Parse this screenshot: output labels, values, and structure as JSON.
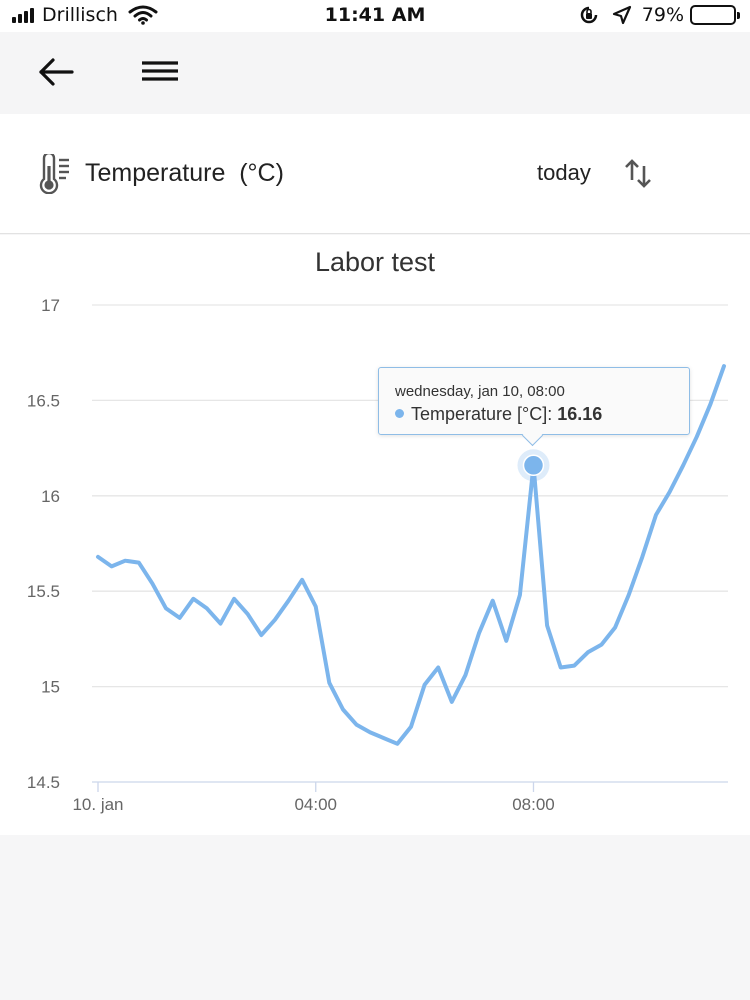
{
  "status_bar": {
    "carrier": "Drillisch",
    "time": "11:41 AM",
    "battery": "79%",
    "battery_level": 0.79
  },
  "nav": {
    "back_icon": "arrow-left-icon",
    "menu_icon": "hamburger-menu-icon"
  },
  "header": {
    "metric_icon": "thermometer-icon",
    "metric_label": "Temperature  (°C)",
    "range_label": "today",
    "sort_icon": "sort-arrows-icon"
  },
  "colors": {
    "series": "#7cb5ec",
    "grid": "#e6e6e6"
  },
  "tooltip": {
    "date": "wednesday, jan 10, 08:00",
    "series_label": "Temperature [°C]:",
    "value": "16.16"
  },
  "chart_data": {
    "type": "line",
    "title": "Labor test",
    "xlabel": "",
    "ylabel": "",
    "ylim": [
      14.5,
      17
    ],
    "yticks": [
      17,
      16.5,
      16,
      15.5,
      15,
      14.5
    ],
    "ytick_labels": [
      "17",
      "16.5",
      "16",
      "15.5",
      "15",
      "14.5"
    ],
    "xlim": [
      0,
      11.5
    ],
    "xticks": [
      0,
      4,
      8
    ],
    "xtick_labels": [
      "10. jan",
      "04:00",
      "08:00"
    ],
    "grid": true,
    "legend": "none",
    "series": [
      {
        "x": [
          0,
          0.25,
          0.5,
          0.75,
          1.0,
          1.25,
          1.5,
          1.75,
          2.0,
          2.25,
          2.5,
          2.75,
          3.0,
          3.25,
          3.5,
          3.75,
          4.0,
          4.25,
          4.5,
          4.75,
          5.0,
          5.25,
          5.5,
          5.75,
          6.0,
          6.25,
          6.5,
          6.75,
          7.0,
          7.25,
          7.5,
          7.75,
          8.0,
          8.25,
          8.5,
          8.75,
          9.0,
          9.25,
          9.5,
          9.75,
          10.0,
          10.25,
          10.5,
          10.75,
          11.0,
          11.25,
          11.5
        ],
        "values": [
          15.68,
          15.63,
          15.66,
          15.65,
          15.54,
          15.41,
          15.36,
          15.46,
          15.41,
          15.33,
          15.46,
          15.38,
          15.27,
          15.35,
          15.45,
          15.56,
          15.42,
          15.02,
          14.88,
          14.8,
          14.76,
          14.73,
          14.7,
          14.79,
          15.01,
          15.1,
          14.92,
          15.06,
          15.28,
          15.45,
          15.24,
          15.48,
          16.16,
          15.32,
          15.1,
          15.11,
          15.18,
          15.22,
          15.31,
          15.48,
          15.68,
          15.9,
          16.02,
          16.16,
          16.31,
          16.48,
          16.68
        ]
      }
    ],
    "highlight": {
      "x": 8.0,
      "y": 16.16
    }
  }
}
